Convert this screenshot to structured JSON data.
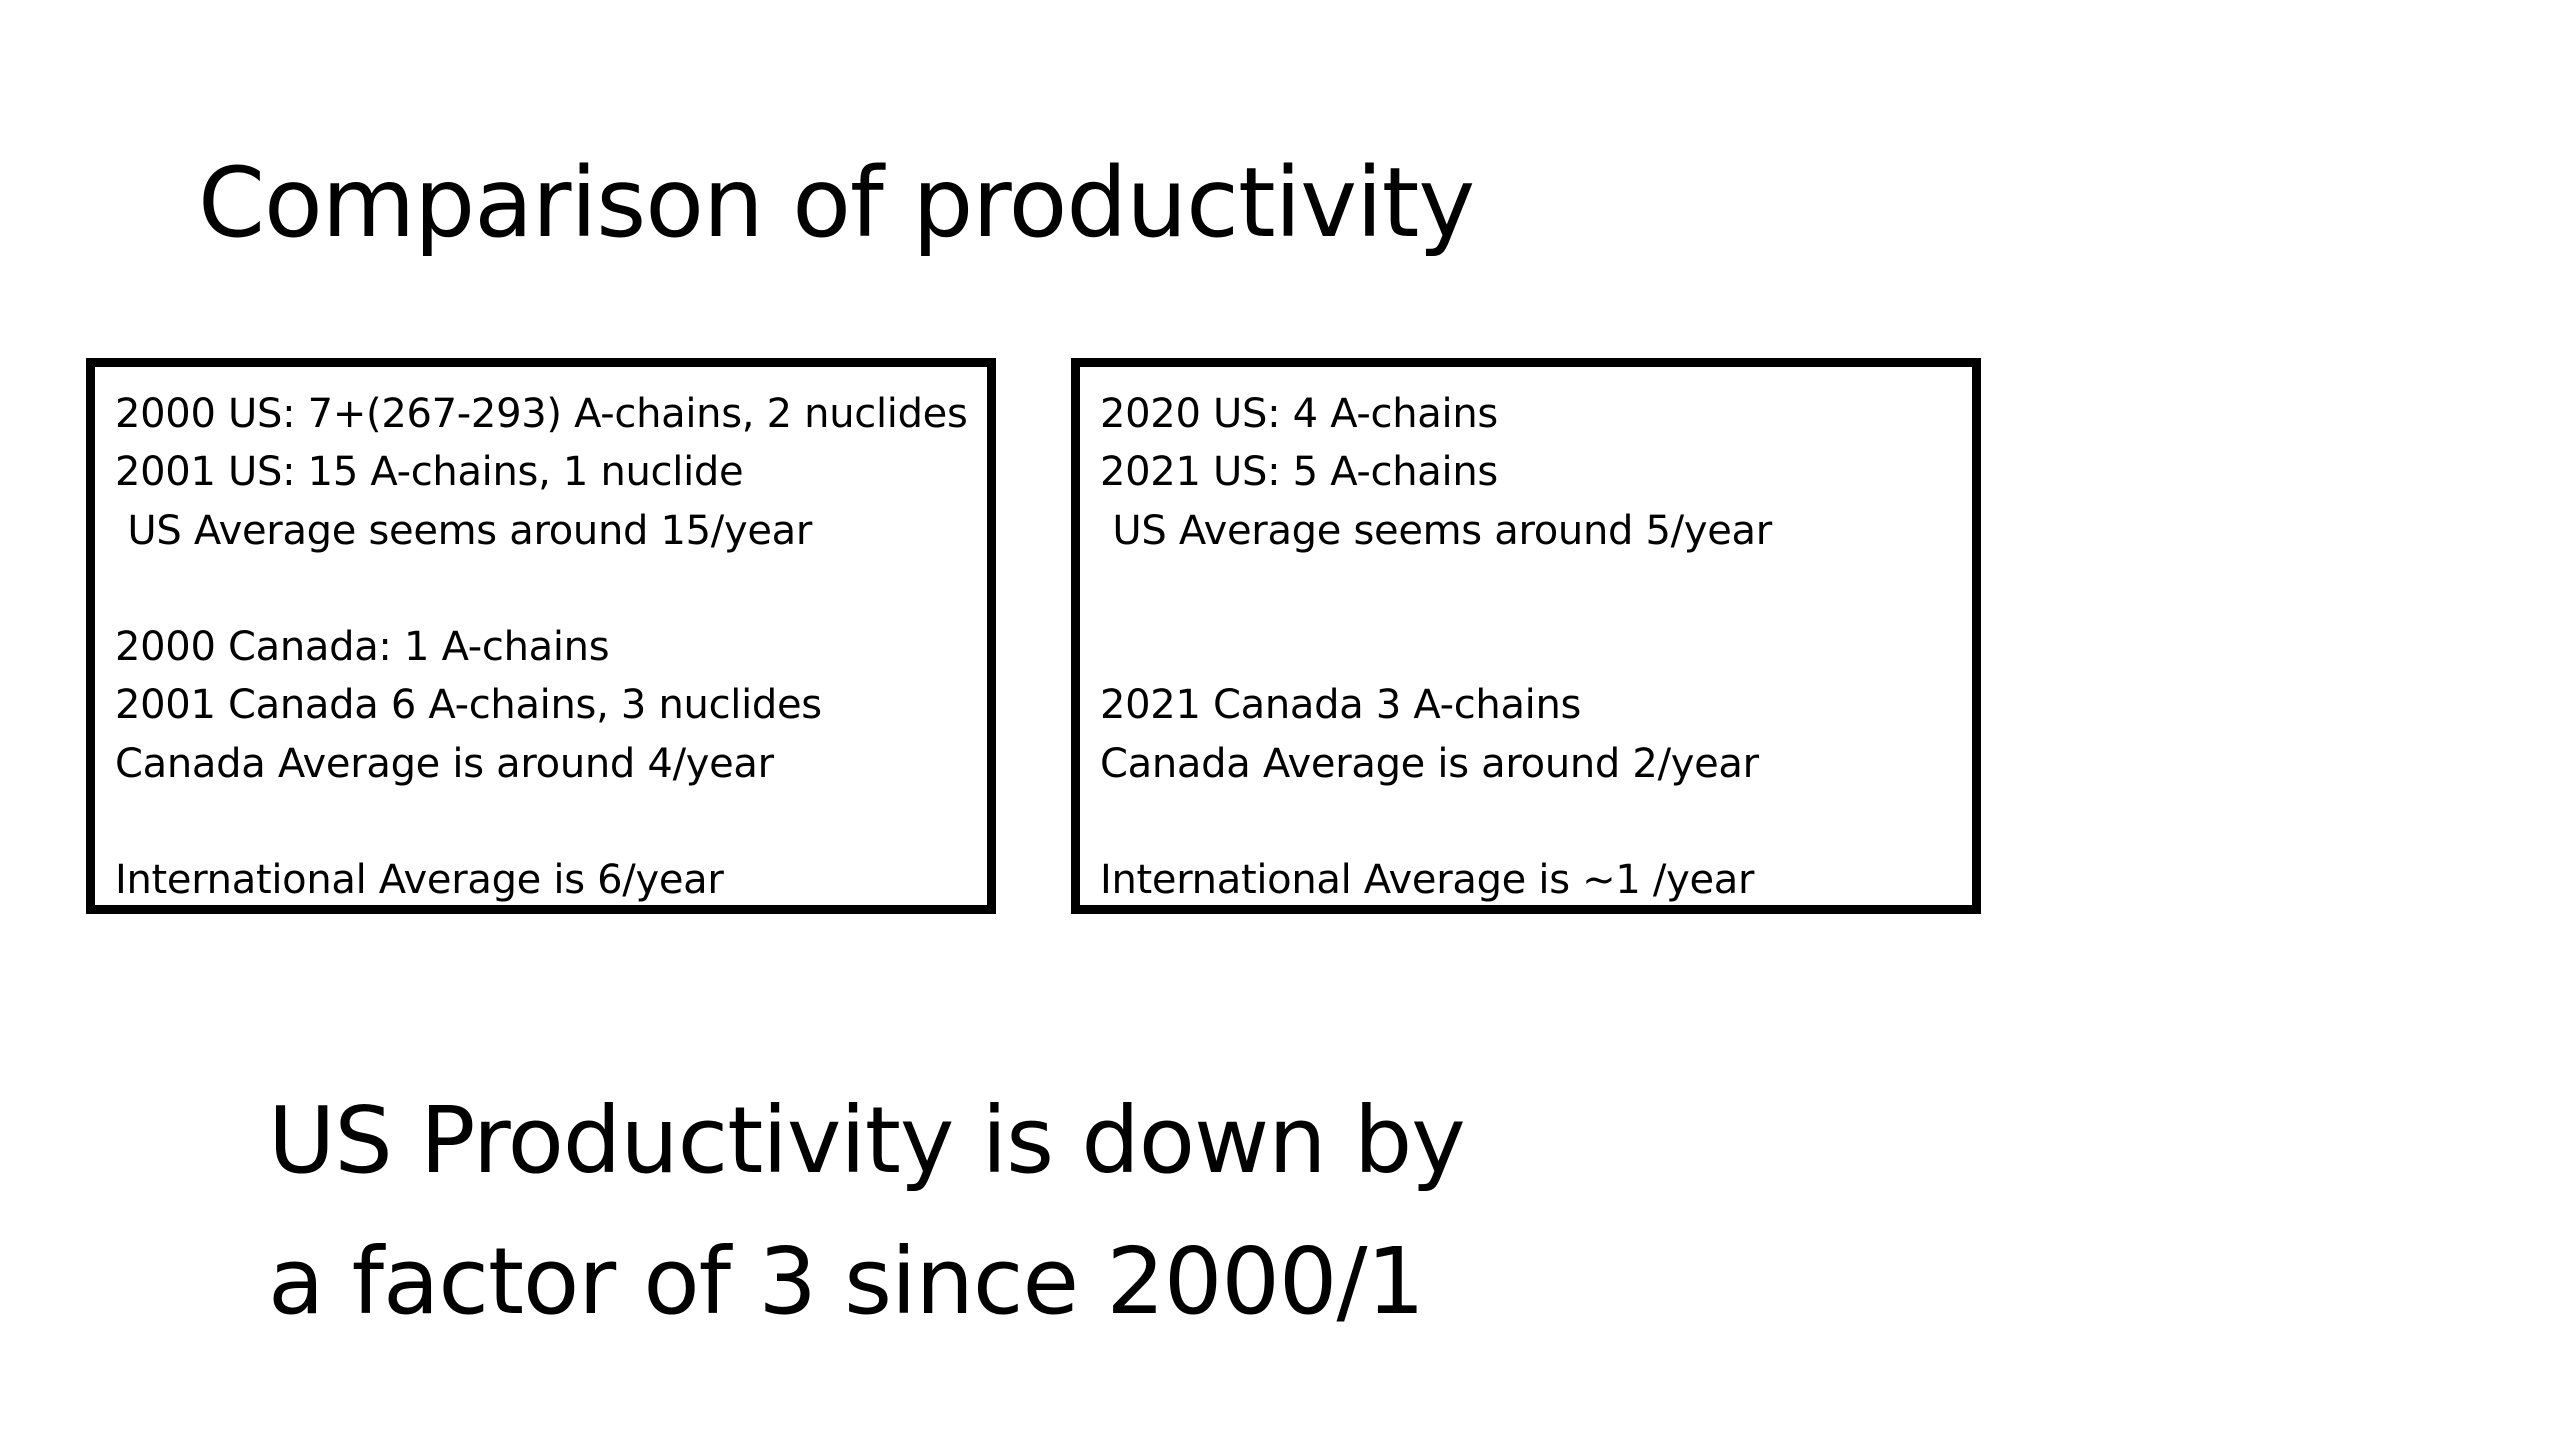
{
  "slide": {
    "title": "Comparison of productivity",
    "left_box": {
      "lines": [
        "2000 US: 7+(267-293) A-chains, 2 nuclides",
        "2001 US: 15 A-chains, 1 nuclide",
        " US Average seems around 15/year",
        "",
        "2000 Canada: 1 A-chains",
        "2001 Canada 6 A-chains, 3 nuclides",
        "Canada Average is around 4/year",
        "",
        "International Average is 6/year"
      ]
    },
    "right_box": {
      "lines": [
        "2020 US: 4 A-chains",
        "2021 US: 5 A-chains",
        " US Average seems around 5/year",
        "",
        "",
        "2021 Canada 3 A-chains",
        "Canada Average is around 2/year",
        "",
        "International Average is ~1 /year"
      ]
    },
    "conclusion": {
      "line1": "US Productivity is down by",
      "line2": "a factor of 3 since 2000/1"
    }
  }
}
